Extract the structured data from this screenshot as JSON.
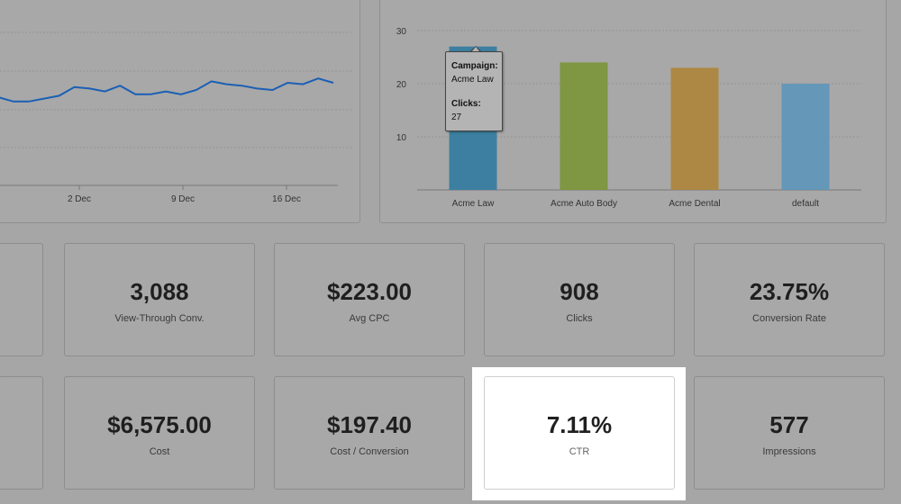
{
  "line_chart": {
    "x_ticks": [
      "2 Dec",
      "9 Dec",
      "16 Dec"
    ],
    "series_color": "#1a5fb4",
    "chart_data": {
      "type": "line",
      "x_labels": [
        "2 Dec",
        "9 Dec",
        "16 Dec"
      ],
      "values": [
        95,
        92,
        92,
        94,
        96,
        102,
        101,
        99,
        103,
        97,
        97,
        99,
        97,
        100,
        106,
        104,
        103,
        101,
        100,
        105,
        104,
        108,
        105
      ]
    }
  },
  "bar_chart": {
    "chart_data": {
      "type": "bar",
      "categories": [
        "Acme Law",
        "Acme Auto Body",
        "Acme Dental",
        "default"
      ],
      "values": [
        27,
        24,
        23,
        20
      ],
      "colors": [
        "#3d7fa0",
        "#7f9642",
        "#ad8845",
        "#6497b8"
      ],
      "y_ticks": [
        10,
        20,
        30
      ],
      "ylim": [
        0,
        30
      ]
    },
    "tooltip": {
      "campaign_label": "Campaign:",
      "campaign_value": "Acme Law",
      "clicks_label": "Clicks:",
      "clicks_value": "27"
    }
  },
  "metrics_row1": [
    {
      "value": "3,088",
      "label": "View-Through Conv."
    },
    {
      "value": "$223.00",
      "label": "Avg CPC"
    },
    {
      "value": "908",
      "label": "Clicks"
    },
    {
      "value": "23.75%",
      "label": "Conversion Rate"
    }
  ],
  "metrics_row2": [
    {
      "value": "$6,575.00",
      "label": "Cost"
    },
    {
      "value": "$197.40",
      "label": "Cost / Conversion"
    },
    {
      "value": "7.11%",
      "label": "CTR"
    },
    {
      "value": "577",
      "label": "Impressions"
    }
  ]
}
